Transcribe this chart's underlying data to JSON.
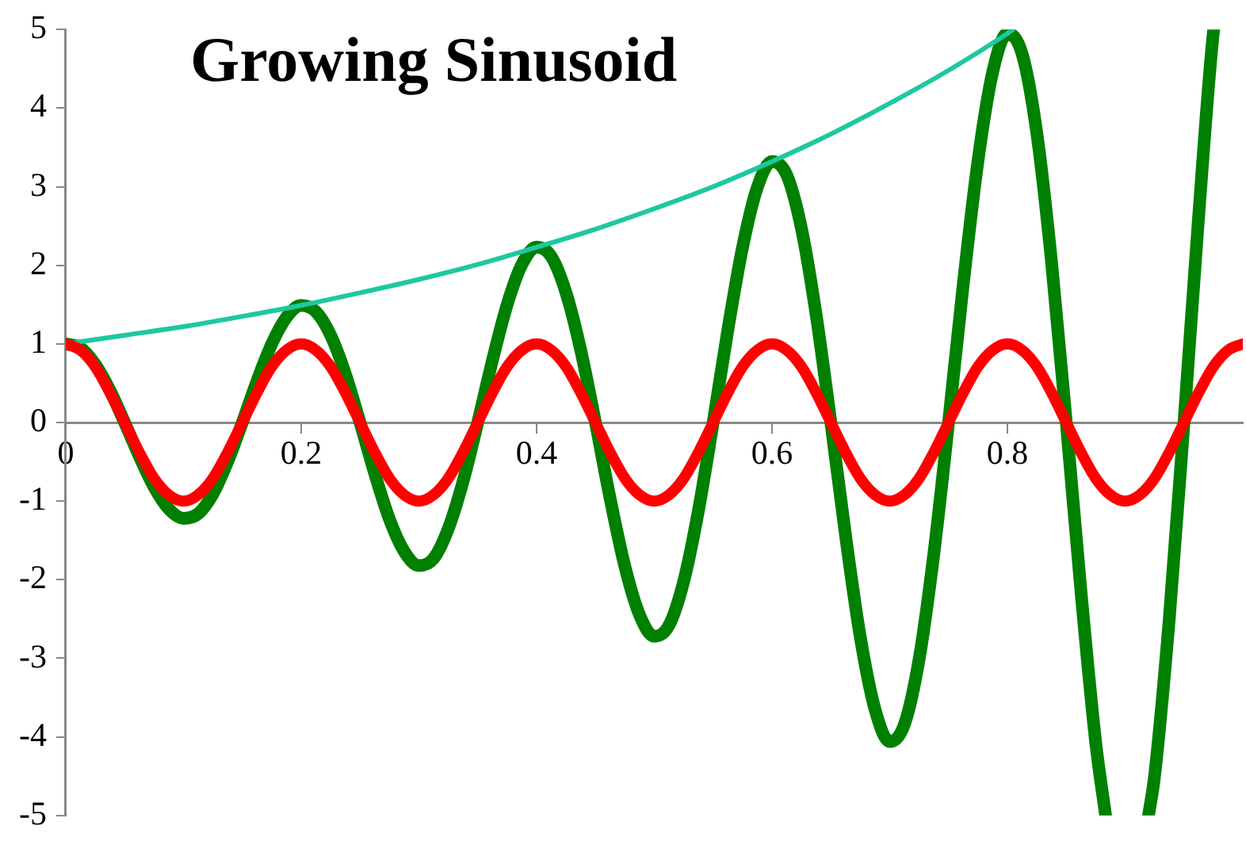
{
  "chart_data": {
    "type": "line",
    "title": "Growing Sinusoid",
    "x": [
      0,
      0.0125,
      0.025,
      0.0375,
      0.05,
      0.0625,
      0.075,
      0.0875,
      0.1,
      0.1125,
      0.125,
      0.1375,
      0.15,
      0.1625,
      0.175,
      0.1875,
      0.2,
      0.2125,
      0.225,
      0.2375,
      0.25,
      0.2625,
      0.275,
      0.2875,
      0.3,
      0.3125,
      0.325,
      0.3375,
      0.35,
      0.3625,
      0.375,
      0.3875,
      0.4,
      0.4125,
      0.425,
      0.4375,
      0.45,
      0.4625,
      0.475,
      0.4875,
      0.5,
      0.5125,
      0.525,
      0.5375,
      0.55,
      0.5625,
      0.575,
      0.5875,
      0.6,
      0.6125,
      0.625,
      0.6375,
      0.65,
      0.6625,
      0.675,
      0.6875,
      0.7,
      0.7125,
      0.725,
      0.7375,
      0.75,
      0.7625,
      0.775,
      0.7875,
      0.8,
      0.8125,
      0.825,
      0.8375,
      0.85,
      0.8625,
      0.875,
      0.8875,
      0.9,
      0.9125,
      0.925,
      0.9375,
      0.95,
      0.9625,
      0.975,
      0.9875,
      1
    ],
    "series": [
      {
        "color": "#ff0000",
        "values": [
          1,
          0.92,
          0.71,
          0.38,
          0,
          -0.38,
          -0.71,
          -0.92,
          -1,
          -0.92,
          -0.71,
          -0.38,
          0,
          0.38,
          0.71,
          0.92,
          1,
          0.92,
          0.71,
          0.38,
          0,
          -0.38,
          -0.71,
          -0.92,
          -1,
          -0.92,
          -0.71,
          -0.38,
          0,
          0.38,
          0.71,
          0.92,
          1,
          0.92,
          0.71,
          0.38,
          0,
          -0.38,
          -0.71,
          -0.92,
          -1,
          -0.92,
          -0.71,
          -0.38,
          0,
          0.38,
          0.71,
          0.92,
          1,
          0.92,
          0.71,
          0.38,
          0,
          -0.38,
          -0.71,
          -0.92,
          -1,
          -0.92,
          -0.71,
          -0.38,
          0,
          0.38,
          0.71,
          0.92,
          1,
          0.92,
          0.71,
          0.38,
          0,
          -0.38,
          -0.71,
          -0.92,
          -1,
          -0.92,
          -0.71,
          -0.38,
          0,
          0.38,
          0.71,
          0.92,
          1
        ]
      },
      {
        "color": "#1ec8a0",
        "x": [
          0,
          0.05,
          0.1,
          0.15,
          0.2,
          0.25,
          0.3,
          0.35,
          0.4,
          0.45,
          0.5,
          0.55,
          0.6,
          0.65,
          0.7,
          0.75,
          0.8,
          0.8047
        ],
        "values": [
          1,
          1.11,
          1.22,
          1.35,
          1.49,
          1.65,
          1.82,
          2.01,
          2.23,
          2.46,
          2.72,
          3,
          3.32,
          3.67,
          4.06,
          4.48,
          4.95,
          5
        ]
      },
      {
        "color": "#008000",
        "x": [
          0,
          0.0125,
          0.025,
          0.0375,
          0.05,
          0.0625,
          0.075,
          0.0875,
          0.1,
          0.1125,
          0.125,
          0.1375,
          0.15,
          0.1625,
          0.175,
          0.1875,
          0.2,
          0.2125,
          0.225,
          0.2375,
          0.25,
          0.2625,
          0.275,
          0.2875,
          0.3,
          0.3125,
          0.325,
          0.3375,
          0.35,
          0.3625,
          0.375,
          0.3875,
          0.4,
          0.4125,
          0.425,
          0.4375,
          0.45,
          0.4625,
          0.475,
          0.4875,
          0.5,
          0.5125,
          0.525,
          0.5375,
          0.55,
          0.5625,
          0.575,
          0.5875,
          0.6,
          0.6125,
          0.625,
          0.6375,
          0.65,
          0.6625,
          0.675,
          0.6875,
          0.7,
          0.7125,
          0.725,
          0.7375,
          0.75,
          0.7625,
          0.775,
          0.7875,
          0.8,
          0.8125,
          0.825,
          0.8375,
          0.85,
          0.8625,
          0.875,
          0.8834,
          0.9,
          0.9199,
          0.925,
          0.9375,
          0.95,
          0.9625,
          0.975,
          0.9753
        ],
        "values": [
          1,
          0.95,
          0.74,
          0.41,
          0,
          -0.43,
          -0.82,
          -1.1,
          -1.22,
          -1.16,
          -0.91,
          -0.5,
          0,
          0.53,
          1,
          1.34,
          1.49,
          1.41,
          1.11,
          0.62,
          0,
          -0.65,
          -1.23,
          -1.64,
          -1.82,
          -1.73,
          -1.35,
          -0.75,
          0,
          0.79,
          1.5,
          2.01,
          2.23,
          2.11,
          1.65,
          0.92,
          0,
          -0.97,
          -1.83,
          -2.45,
          -2.72,
          -2.58,
          -2.02,
          -1.12,
          0,
          1.18,
          2.23,
          2.99,
          3.32,
          3.15,
          2.47,
          1.37,
          0,
          -1.44,
          -2.73,
          -3.65,
          -4.06,
          -3.84,
          -3.01,
          -1.67,
          0,
          1.76,
          3.33,
          4.46,
          4.95,
          4.69,
          3.68,
          2.04,
          0,
          -2.15,
          -4.07,
          -5,
          null,
          -5,
          -4.5,
          -2.5,
          0,
          2.63,
          4.97,
          5
        ]
      }
    ],
    "xlim": [
      0,
      1
    ],
    "xticks": [
      0,
      0.2,
      0.4,
      0.6,
      0.8
    ],
    "ylim": [
      -5,
      5
    ],
    "yticks": [
      -5,
      -4,
      -3,
      -2,
      -1,
      0,
      1,
      2,
      3,
      4,
      5
    ],
    "grid": false,
    "legend": false,
    "marker": "none",
    "line_style": "solid"
  }
}
